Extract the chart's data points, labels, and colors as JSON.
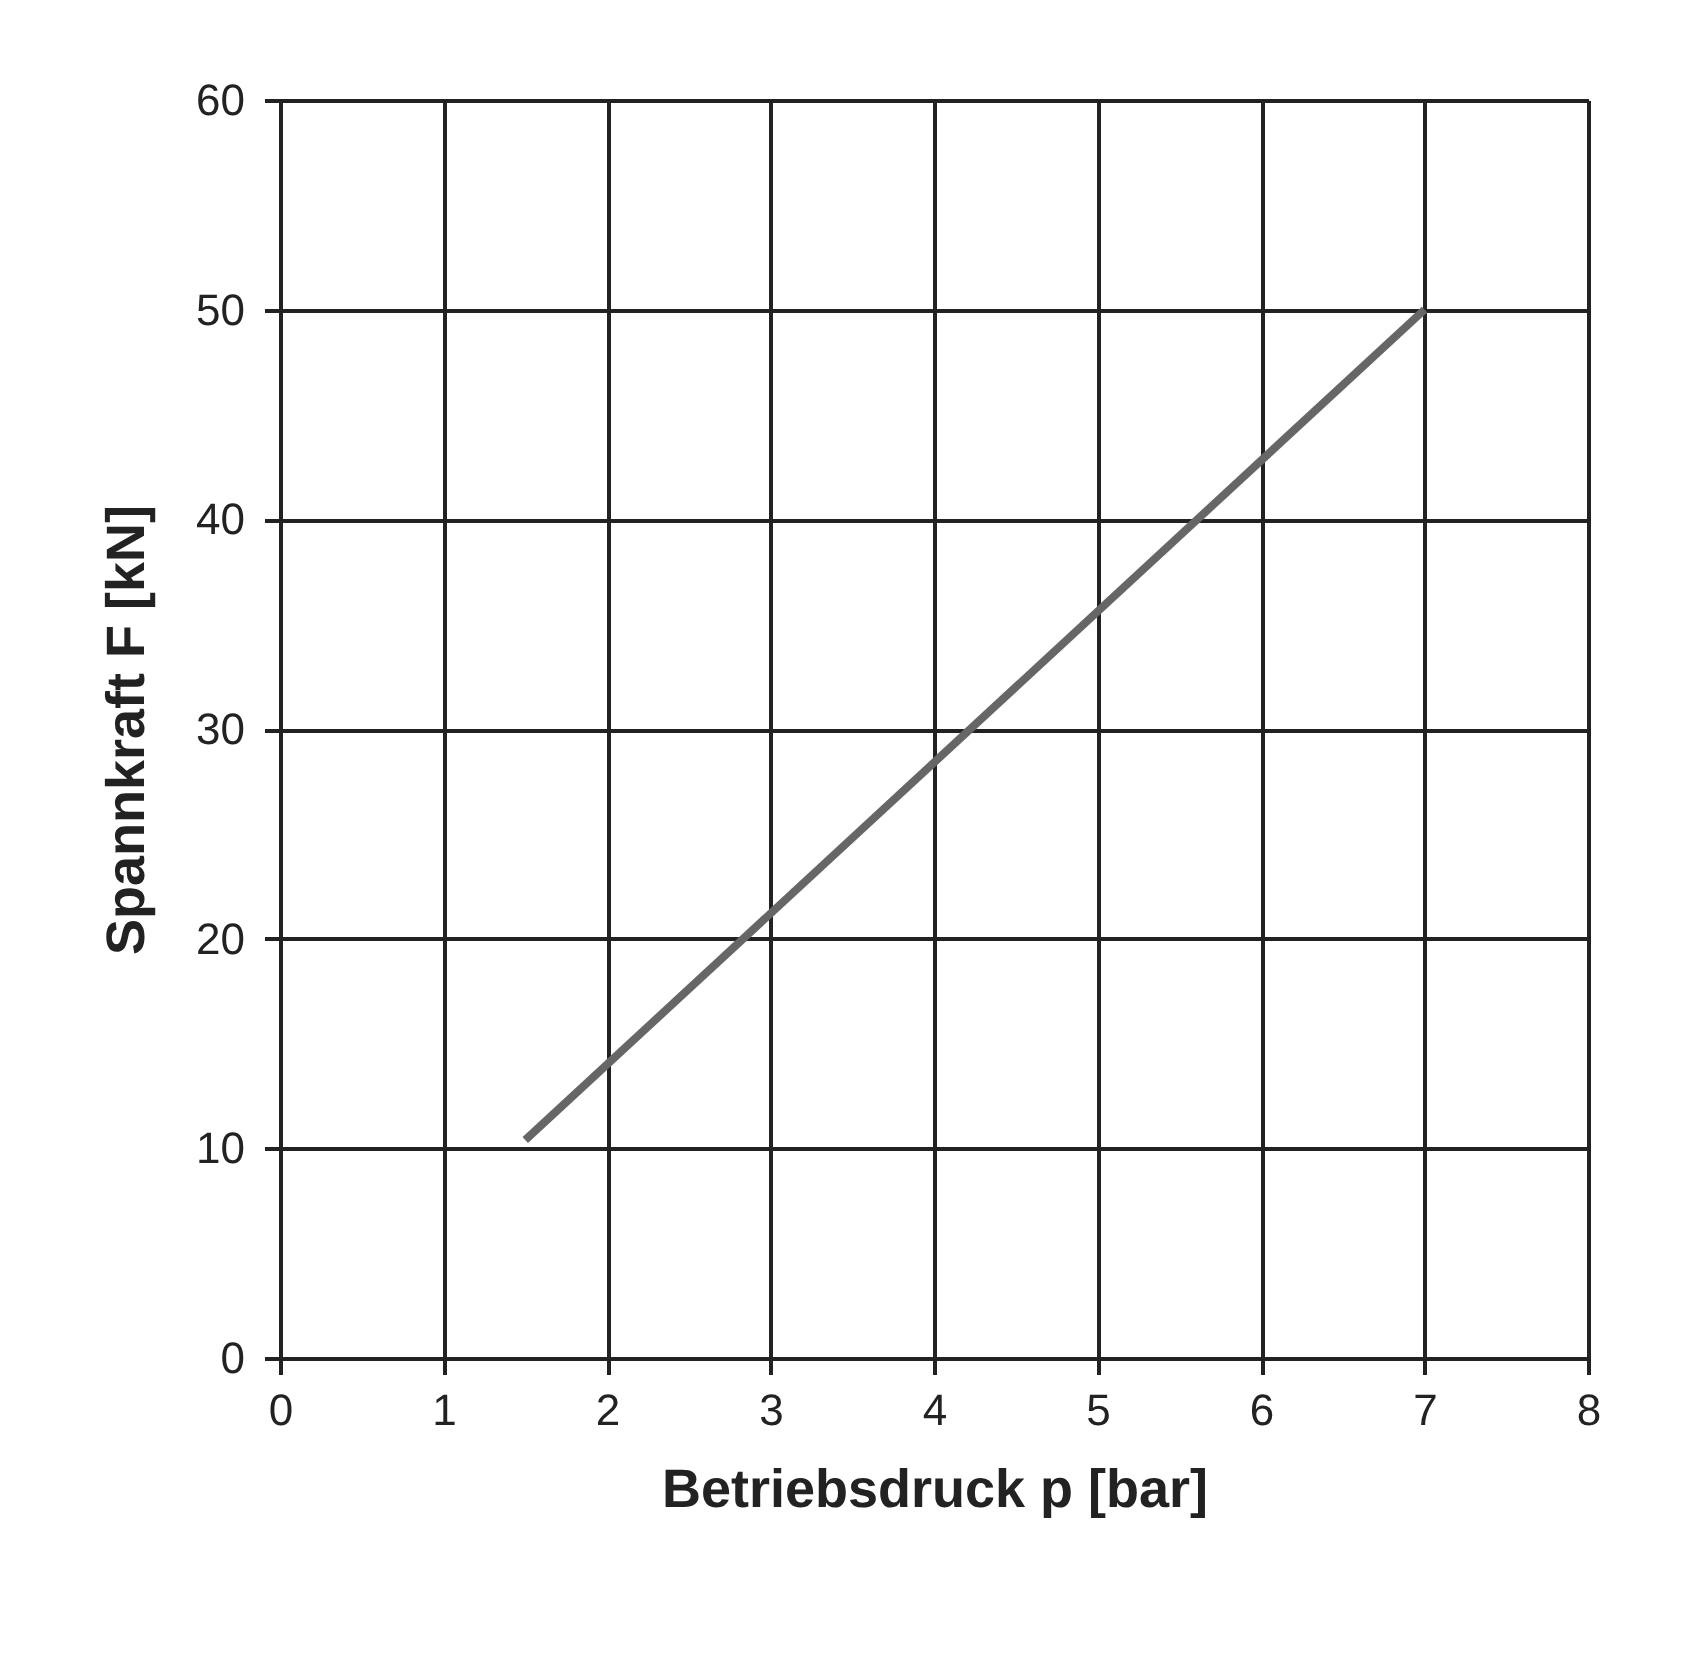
{
  "chart_data": {
    "type": "line",
    "xlabel": "Betriebsdruck p [bar]",
    "ylabel": "Spannkraft F [kN]",
    "x": [
      1.5,
      7
    ],
    "series": [
      {
        "color": "#666666",
        "values": [
          10.4,
          50
        ]
      }
    ],
    "xlim": [
      0,
      8
    ],
    "xticks": [
      0,
      1,
      2,
      3,
      4,
      5,
      6,
      7,
      8
    ],
    "ylim": [
      0,
      60
    ],
    "yticks": [
      0,
      10,
      20,
      30,
      40,
      50,
      60
    ],
    "grid": true,
    "marker": "none",
    "line_style": "solid"
  }
}
